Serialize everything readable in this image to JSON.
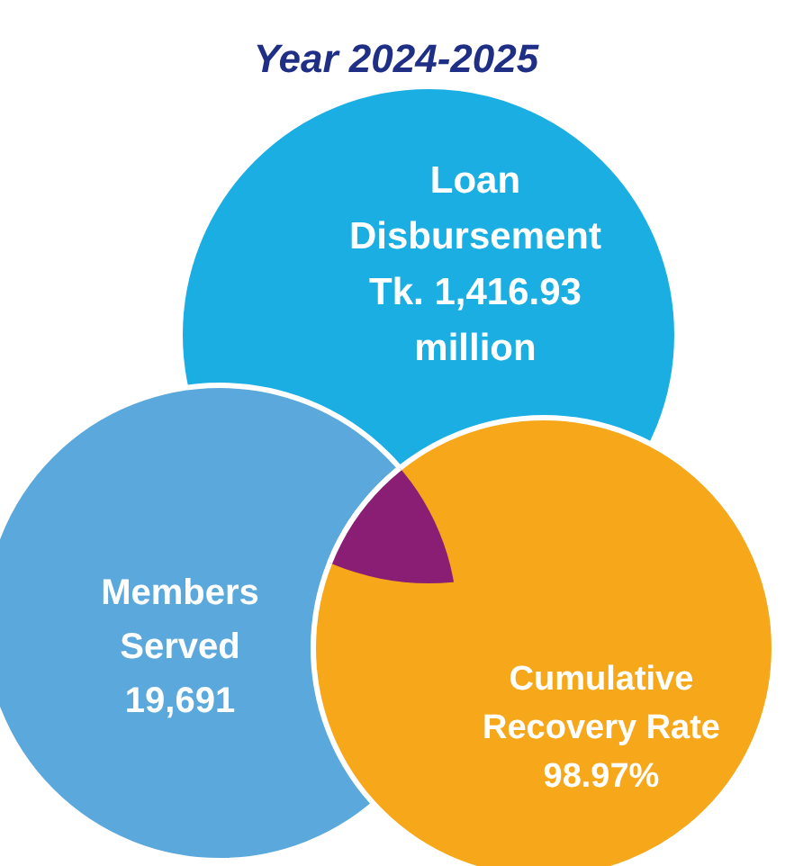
{
  "chart_data": {
    "type": "other",
    "title": "Year 2024-2025",
    "categories": [
      "Loan Disbursement",
      "Members Served",
      "Cumulative Recovery Rate"
    ],
    "values": [
      1416.93,
      19691,
      98.97
    ],
    "value_labels": [
      "Tk. 1,416.93 million",
      "19,691",
      "98.97%"
    ],
    "colors": [
      "#1aaee3",
      "#5ba8dc",
      "#f6a81a"
    ]
  }
}
